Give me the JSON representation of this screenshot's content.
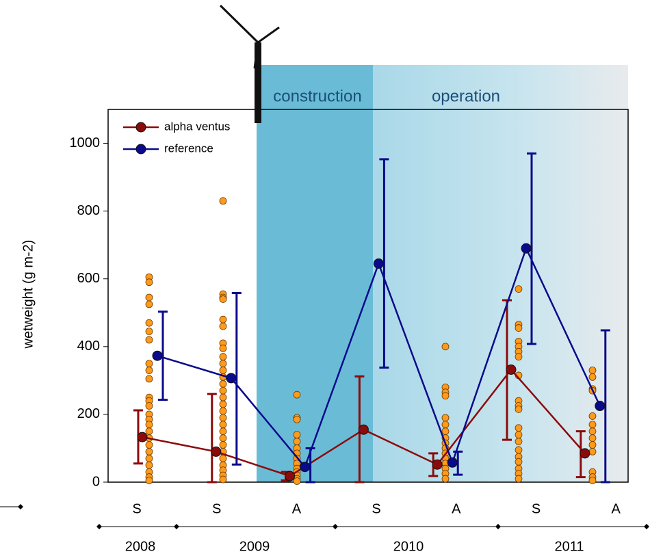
{
  "chart_data": {
    "type": "line",
    "y_label": "wetweight (g m-2)",
    "periods": [
      "construction",
      "operation"
    ],
    "categories": [
      "S",
      "S",
      "A",
      "S",
      "A",
      "S",
      "A"
    ],
    "years": [
      "2008",
      "2009",
      "2010",
      "2011"
    ],
    "ylim": [
      0,
      1100
    ],
    "yticks": [
      0,
      200,
      400,
      600,
      800,
      1000
    ],
    "series": [
      {
        "name": "alpha ventus",
        "color": "#8b0a0a",
        "values": [
          133,
          90,
          18,
          155,
          52,
          332,
          85
        ],
        "err_low": [
          55,
          0,
          5,
          0,
          18,
          125,
          15
        ],
        "err_high": [
          212,
          260,
          30,
          312,
          85,
          537,
          150
        ]
      },
      {
        "name": "reference",
        "color": "#0a0a8c",
        "values": [
          373,
          307,
          45,
          645,
          58,
          690,
          225
        ],
        "err_low": [
          243,
          52,
          0,
          338,
          22,
          408,
          0
        ],
        "err_high": [
          503,
          558,
          100,
          953,
          90,
          970,
          448
        ]
      }
    ],
    "samples": [
      [
        605,
        590,
        545,
        525,
        470,
        445,
        420,
        350,
        330,
        305,
        250,
        240,
        225,
        200,
        185,
        170,
        150,
        130,
        110,
        90,
        70,
        50,
        30,
        15,
        5
      ],
      [
        830,
        555,
        545,
        540,
        480,
        460,
        410,
        395,
        370,
        350,
        330,
        310,
        290,
        270,
        250,
        230,
        210,
        190,
        170,
        150,
        130,
        110,
        90,
        70,
        50,
        35,
        20,
        8
      ],
      [
        258,
        190,
        185,
        140,
        120,
        100,
        85,
        70,
        55,
        40,
        30,
        20,
        10,
        3
      ],
      [],
      [
        400,
        280,
        265,
        255,
        190,
        170,
        150,
        130,
        115,
        100,
        85,
        70,
        55,
        40,
        25,
        10
      ],
      [
        570,
        465,
        455,
        415,
        400,
        385,
        370,
        315,
        240,
        225,
        215,
        160,
        140,
        120,
        95,
        75,
        60,
        40,
        25,
        10
      ],
      [
        330,
        310,
        275,
        270,
        195,
        170,
        150,
        130,
        110,
        90,
        30,
        15,
        5
      ]
    ],
    "sample_color": "#ff9a1a"
  }
}
